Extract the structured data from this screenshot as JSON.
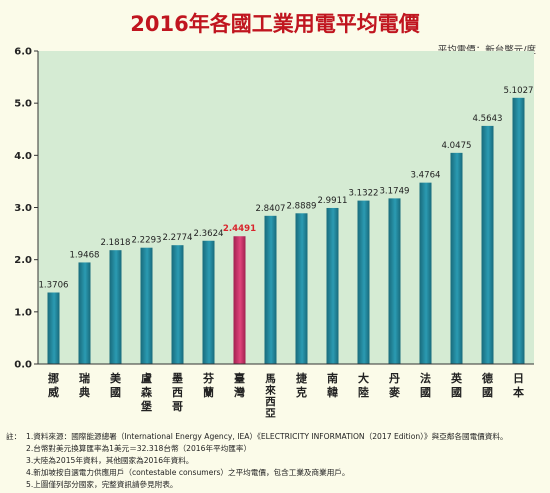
{
  "colors": {
    "bar": "#2b9bb2",
    "bar_dark": "#186a7b",
    "highlight_bar": "#e0457b",
    "highlight_bar_dark": "#a1204f",
    "highlight_label": "#d9242c",
    "title": "#c0151f",
    "plot_bg": "#d5ebd3"
  },
  "chart_data": {
    "type": "bar",
    "title": "2016年各國工業用電平均電價",
    "unit_label": "平均電價：新台幣元/度",
    "ylim": [
      0,
      6
    ],
    "yticks": [
      "0.0",
      "1.0",
      "2.0",
      "3.0",
      "4.0",
      "5.0",
      "6.0"
    ],
    "categories": [
      "挪威",
      "瑞典",
      "美國",
      "盧森堡",
      "墨西哥",
      "芬蘭",
      "臺灣",
      "馬來西亞",
      "捷克",
      "南韓",
      "大陸",
      "丹麥",
      "法國",
      "英國",
      "德國",
      "日本"
    ],
    "values": [
      1.3706,
      1.9468,
      2.1818,
      2.2293,
      2.2774,
      2.3624,
      2.4491,
      2.8407,
      2.8889,
      2.9911,
      3.1322,
      3.1749,
      3.4764,
      4.0475,
      4.5643,
      5.1027
    ],
    "value_labels": [
      "1.3706",
      "1.9468",
      "2.1818",
      "2.2293",
      "2.2774",
      "2.3624",
      "2.4491",
      "2.8407",
      "2.8889",
      "2.9911",
      "3.1322",
      "3.1749",
      "3.4764",
      "4.0475",
      "4.5643",
      "5.1027"
    ],
    "highlight_index": 6,
    "grid": false,
    "legend": "none"
  },
  "notes": {
    "prefix": "註：",
    "lines": [
      "1.資料來源：國際能源總署（International Energy Agency, IEA）《ELECTRICITY INFORMATION（2017 Edition）》與亞鄰各國電價資料。",
      "2.台幣對美元換算匯率為1美元＝32.318台幣（2016年平均匯率）",
      "3.大陸為2015年資料，其他國家為2016年資料。",
      "4.新加坡按自選電力供應用戶（contestable consumers）之平均電價，包含工業及商業用戶。",
      "5.上圖僅列部分國家，完整資訊請參見附表。"
    ]
  }
}
